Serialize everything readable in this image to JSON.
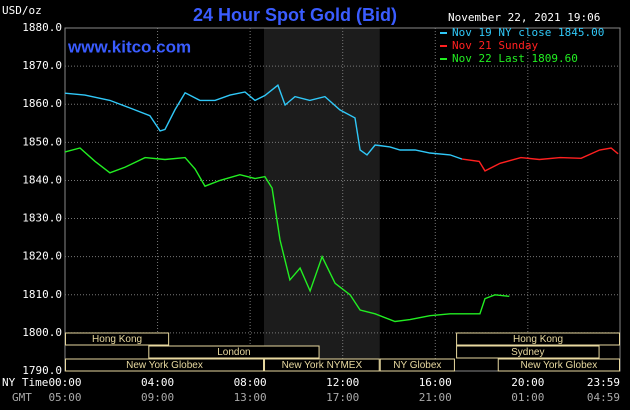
{
  "chart_data": {
    "type": "line",
    "title": "24 Hour Spot Gold (Bid)",
    "y_label": "USD/oz",
    "watermark": "www.kitco.com",
    "timestamp": "November 22, 2021 19:06",
    "x_row_label": "NY Time",
    "x2_row_label": "GMT",
    "xlim": [
      0,
      23.983
    ],
    "xticks": [
      {
        "value": 0,
        "label": "00:00"
      },
      {
        "value": 4,
        "label": "04:00"
      },
      {
        "value": 8,
        "label": "08:00"
      },
      {
        "value": 12,
        "label": "12:00"
      },
      {
        "value": 16,
        "label": "16:00"
      },
      {
        "value": 20,
        "label": "20:00"
      },
      {
        "value": 23.983,
        "label": "23:59"
      }
    ],
    "gmt_labels": [
      "05:00",
      "09:00",
      "13:00",
      "17:00",
      "21:00",
      "01:00",
      "04:59"
    ],
    "ylim": [
      1790,
      1880
    ],
    "yticks": [
      {
        "value": 1790,
        "label": "1790.0"
      },
      {
        "value": 1800,
        "label": "1800.0"
      },
      {
        "value": 1810,
        "label": "1810.0"
      },
      {
        "value": 1820,
        "label": "1820.0"
      },
      {
        "value": 1830,
        "label": "1830.0"
      },
      {
        "value": 1840,
        "label": "1840.0"
      },
      {
        "value": 1850,
        "label": "1850.0"
      },
      {
        "value": 1860,
        "label": "1860.0"
      },
      {
        "value": 1870,
        "label": "1870.0"
      },
      {
        "value": 1880,
        "label": "1880.0"
      }
    ],
    "grid": true,
    "shade": [
      8.6,
      13.6
    ],
    "sessions": [
      {
        "name": "Hong Kong",
        "start": 0,
        "end": 4.5,
        "row": 1
      },
      {
        "name": "Hong Kong",
        "start": 16.9,
        "end": 23.983,
        "row": 1
      },
      {
        "name": "London",
        "start": 3.6,
        "end": 11,
        "row": 2
      },
      {
        "name": "Sydney",
        "start": 16.9,
        "end": 23.1,
        "row": 2
      },
      {
        "name": "New York Globex",
        "start": 0,
        "end": 8.6,
        "row": 3
      },
      {
        "name": "New York NYMEX",
        "start": 8.6,
        "end": 13.6,
        "row": 3
      },
      {
        "name": "NY Globex",
        "start": 13.6,
        "end": 16.85,
        "row": 3
      },
      {
        "name": "New York Globex",
        "start": 18.7,
        "end": 23.983,
        "row": 3
      }
    ],
    "series": [
      {
        "name": "Nov 19 NY close 1845.00",
        "color": "#30c8f8",
        "x": [
          0,
          0.86,
          1.94,
          2.81,
          3.67,
          4.11,
          4.32,
          4.75,
          5.19,
          5.83,
          6.48,
          7.13,
          7.78,
          8.21,
          8.64,
          9.2,
          9.51,
          9.94,
          10.58,
          11.23,
          11.88,
          12.53,
          12.75,
          13.05,
          13.4,
          14.04,
          14.48,
          15.13,
          15.77,
          16.64,
          17.16
        ],
        "values": [
          1862.9,
          1862.4,
          1861,
          1859,
          1857,
          1853,
          1853.4,
          1858.5,
          1863,
          1861,
          1861,
          1862.4,
          1863.2,
          1861,
          1862.3,
          1865,
          1859.8,
          1862,
          1861,
          1862,
          1858.5,
          1856.4,
          1848,
          1846.7,
          1849.3,
          1848.8,
          1848,
          1848,
          1847.2,
          1846.7,
          1845.6
        ]
      },
      {
        "name": "Nov 21 Sunday",
        "color": "#ff2020",
        "x": [
          17.16,
          17.9,
          18.15,
          18.8,
          19.7,
          20.5,
          21.4,
          22.3,
          23.1,
          23.6,
          23.9
        ],
        "values": [
          1845.6,
          1845,
          1842.5,
          1844.5,
          1846,
          1845.5,
          1846,
          1845.8,
          1848,
          1848.5,
          1847
        ]
      },
      {
        "name": "Nov 22 Last 1809.60",
        "color": "#22ee22",
        "x": [
          0,
          0.65,
          1.3,
          1.94,
          2.6,
          3.46,
          4.32,
          5.19,
          5.62,
          6.05,
          6.7,
          7.56,
          8.21,
          8.64,
          8.95,
          9.29,
          9.72,
          10.16,
          10.59,
          11.11,
          11.67,
          12.32,
          12.75,
          13.4,
          14.26,
          14.91,
          15.77,
          16.64,
          17.5,
          17.93,
          18.15,
          18.58,
          19.2
        ],
        "values": [
          1847.5,
          1848.5,
          1845,
          1842,
          1843.5,
          1846,
          1845.5,
          1846,
          1843,
          1838.5,
          1840,
          1841.5,
          1840.5,
          1841,
          1838,
          1824.4,
          1813.9,
          1817,
          1811,
          1820,
          1813,
          1810,
          1806,
          1805,
          1803,
          1803.5,
          1804.5,
          1805,
          1805,
          1805,
          1809,
          1810,
          1809.6
        ]
      }
    ]
  }
}
